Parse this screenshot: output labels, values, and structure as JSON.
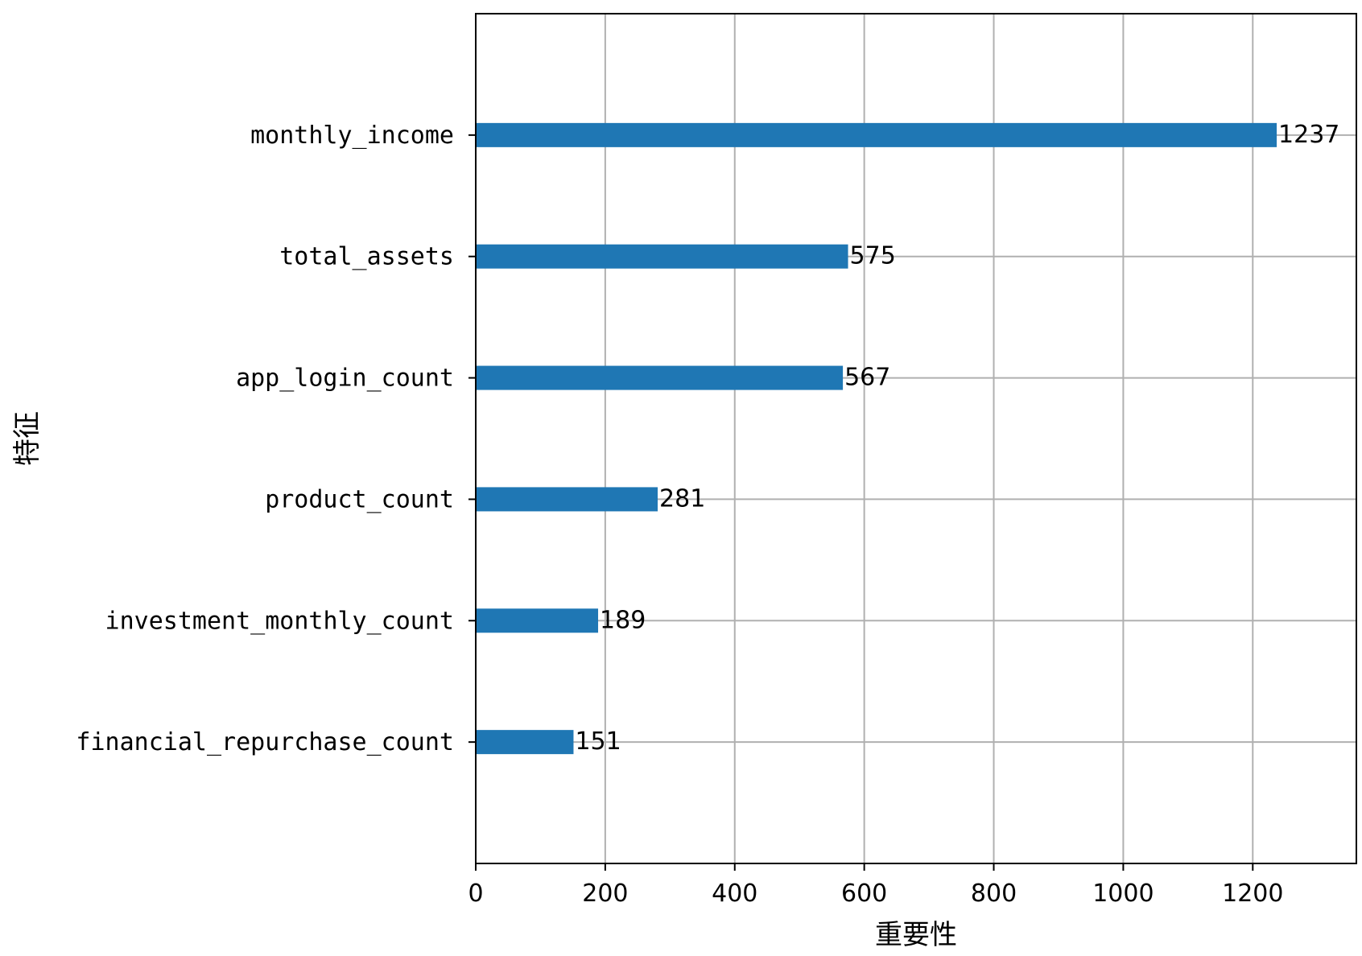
{
  "chart_data": {
    "type": "bar",
    "orientation": "horizontal",
    "title": "",
    "xlabel": "重要性",
    "ylabel": "特征",
    "categories": [
      "financial_repurchase_count",
      "investment_monthly_count",
      "product_count",
      "app_login_count",
      "total_assets",
      "monthly_income"
    ],
    "values": [
      151,
      189,
      281,
      567,
      575,
      1237
    ],
    "value_labels": [
      "151",
      "189",
      "281",
      "567",
      "575",
      "1237"
    ],
    "xlim": [
      0,
      1360
    ],
    "xticks": [
      0,
      200,
      400,
      600,
      800,
      1000,
      1200
    ],
    "xtick_labels": [
      "0",
      "200",
      "400",
      "600",
      "800",
      "1000",
      "1200"
    ],
    "grid": true,
    "bar_color": "#1f77b4"
  }
}
